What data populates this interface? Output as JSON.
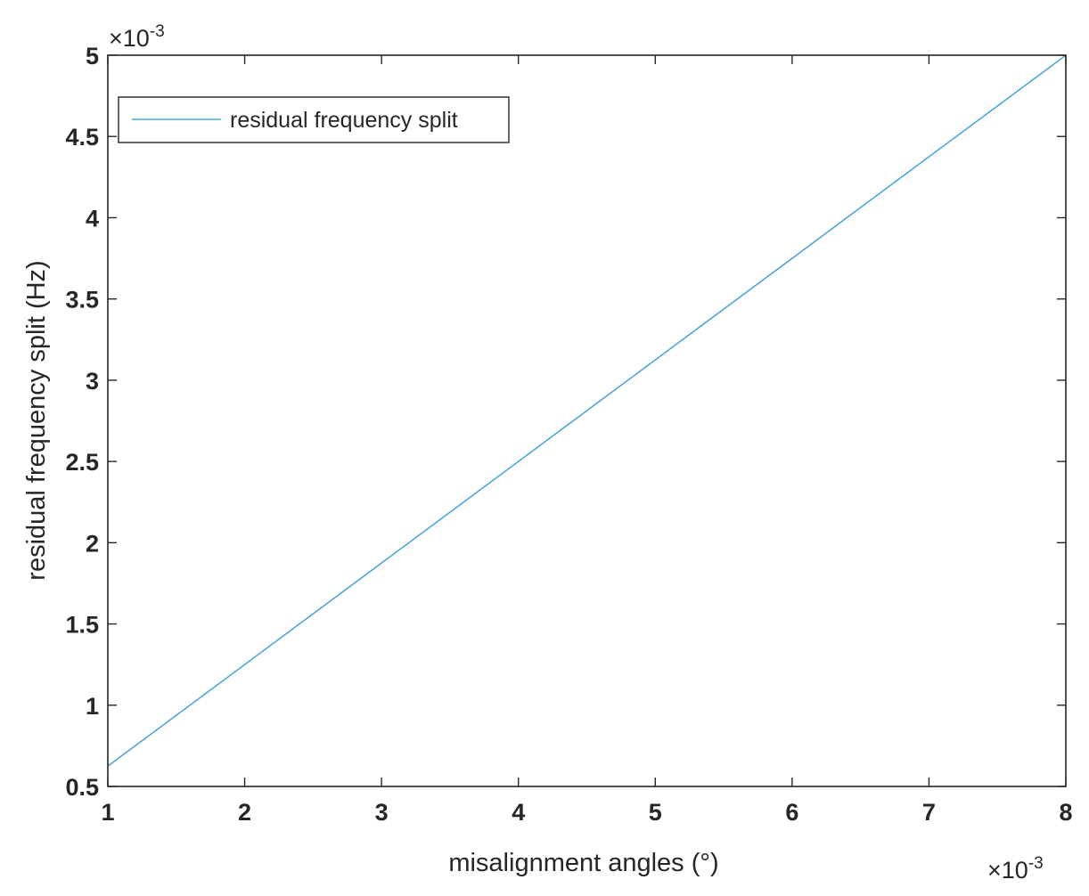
{
  "chart_data": {
    "type": "line",
    "title": "",
    "xlabel": "misalignment angles (°)",
    "ylabel": "residual frequency split (Hz)",
    "x_exponent": {
      "base": "×10",
      "power": "-3"
    },
    "y_exponent": {
      "base": "×10",
      "power": "-3"
    },
    "xlim": [
      1,
      8
    ],
    "ylim": [
      0.5,
      5
    ],
    "x_ticks": [
      "1",
      "2",
      "3",
      "4",
      "5",
      "6",
      "7",
      "8"
    ],
    "y_ticks": [
      "0.5",
      "1",
      "1.5",
      "2",
      "2.5",
      "3",
      "3.5",
      "4",
      "4.5",
      "5"
    ],
    "x_tick_values": [
      1,
      2,
      3,
      4,
      5,
      6,
      7,
      8
    ],
    "y_tick_values": [
      0.5,
      1,
      1.5,
      2,
      2.5,
      3,
      3.5,
      4,
      4.5,
      5
    ],
    "series": [
      {
        "name": "residual frequency split",
        "color": "#4DA6DE",
        "x": [
          1,
          2,
          3,
          4,
          5,
          6,
          7,
          8
        ],
        "y": [
          0.625,
          1.25,
          1.875,
          2.5,
          3.125,
          3.75,
          4.375,
          5.0
        ]
      }
    ],
    "grid": false,
    "legend": "top-left"
  }
}
